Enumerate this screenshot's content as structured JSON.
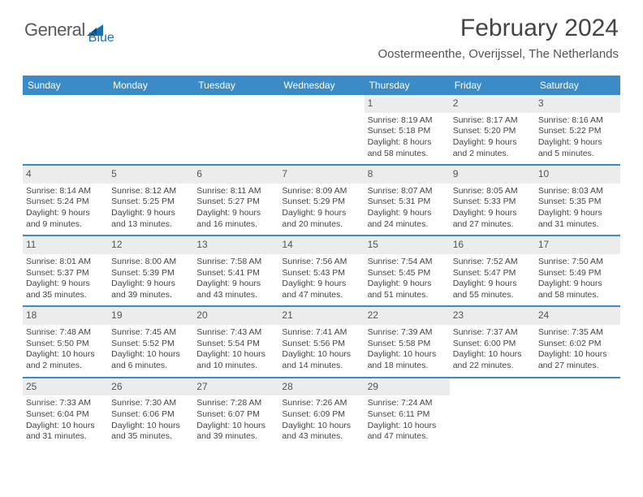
{
  "brand": {
    "name_part1": "General",
    "name_part2": "Blue"
  },
  "title": "February 2024",
  "location": "Oostermeenthe, Overijssel, The Netherlands",
  "colors": {
    "header_bg": "#3b8bc7",
    "daynum_bg": "#ececec",
    "rule": "#3b8bc7",
    "text": "#444444",
    "logo_gray": "#5a5a5a",
    "logo_blue": "#1b6fb3"
  },
  "weekdays": [
    "Sunday",
    "Monday",
    "Tuesday",
    "Wednesday",
    "Thursday",
    "Friday",
    "Saturday"
  ],
  "weeks": [
    [
      {
        "blank": true
      },
      {
        "blank": true
      },
      {
        "blank": true
      },
      {
        "blank": true
      },
      {
        "n": "1",
        "sr": "8:19 AM",
        "ss": "5:18 PM",
        "dl1": "Daylight: 8 hours",
        "dl2": "and 58 minutes."
      },
      {
        "n": "2",
        "sr": "8:17 AM",
        "ss": "5:20 PM",
        "dl1": "Daylight: 9 hours",
        "dl2": "and 2 minutes."
      },
      {
        "n": "3",
        "sr": "8:16 AM",
        "ss": "5:22 PM",
        "dl1": "Daylight: 9 hours",
        "dl2": "and 5 minutes."
      }
    ],
    [
      {
        "n": "4",
        "sr": "8:14 AM",
        "ss": "5:24 PM",
        "dl1": "Daylight: 9 hours",
        "dl2": "and 9 minutes."
      },
      {
        "n": "5",
        "sr": "8:12 AM",
        "ss": "5:25 PM",
        "dl1": "Daylight: 9 hours",
        "dl2": "and 13 minutes."
      },
      {
        "n": "6",
        "sr": "8:11 AM",
        "ss": "5:27 PM",
        "dl1": "Daylight: 9 hours",
        "dl2": "and 16 minutes."
      },
      {
        "n": "7",
        "sr": "8:09 AM",
        "ss": "5:29 PM",
        "dl1": "Daylight: 9 hours",
        "dl2": "and 20 minutes."
      },
      {
        "n": "8",
        "sr": "8:07 AM",
        "ss": "5:31 PM",
        "dl1": "Daylight: 9 hours",
        "dl2": "and 24 minutes."
      },
      {
        "n": "9",
        "sr": "8:05 AM",
        "ss": "5:33 PM",
        "dl1": "Daylight: 9 hours",
        "dl2": "and 27 minutes."
      },
      {
        "n": "10",
        "sr": "8:03 AM",
        "ss": "5:35 PM",
        "dl1": "Daylight: 9 hours",
        "dl2": "and 31 minutes."
      }
    ],
    [
      {
        "n": "11",
        "sr": "8:01 AM",
        "ss": "5:37 PM",
        "dl1": "Daylight: 9 hours",
        "dl2": "and 35 minutes."
      },
      {
        "n": "12",
        "sr": "8:00 AM",
        "ss": "5:39 PM",
        "dl1": "Daylight: 9 hours",
        "dl2": "and 39 minutes."
      },
      {
        "n": "13",
        "sr": "7:58 AM",
        "ss": "5:41 PM",
        "dl1": "Daylight: 9 hours",
        "dl2": "and 43 minutes."
      },
      {
        "n": "14",
        "sr": "7:56 AM",
        "ss": "5:43 PM",
        "dl1": "Daylight: 9 hours",
        "dl2": "and 47 minutes."
      },
      {
        "n": "15",
        "sr": "7:54 AM",
        "ss": "5:45 PM",
        "dl1": "Daylight: 9 hours",
        "dl2": "and 51 minutes."
      },
      {
        "n": "16",
        "sr": "7:52 AM",
        "ss": "5:47 PM",
        "dl1": "Daylight: 9 hours",
        "dl2": "and 55 minutes."
      },
      {
        "n": "17",
        "sr": "7:50 AM",
        "ss": "5:49 PM",
        "dl1": "Daylight: 9 hours",
        "dl2": "and 58 minutes."
      }
    ],
    [
      {
        "n": "18",
        "sr": "7:48 AM",
        "ss": "5:50 PM",
        "dl1": "Daylight: 10 hours",
        "dl2": "and 2 minutes."
      },
      {
        "n": "19",
        "sr": "7:45 AM",
        "ss": "5:52 PM",
        "dl1": "Daylight: 10 hours",
        "dl2": "and 6 minutes."
      },
      {
        "n": "20",
        "sr": "7:43 AM",
        "ss": "5:54 PM",
        "dl1": "Daylight: 10 hours",
        "dl2": "and 10 minutes."
      },
      {
        "n": "21",
        "sr": "7:41 AM",
        "ss": "5:56 PM",
        "dl1": "Daylight: 10 hours",
        "dl2": "and 14 minutes."
      },
      {
        "n": "22",
        "sr": "7:39 AM",
        "ss": "5:58 PM",
        "dl1": "Daylight: 10 hours",
        "dl2": "and 18 minutes."
      },
      {
        "n": "23",
        "sr": "7:37 AM",
        "ss": "6:00 PM",
        "dl1": "Daylight: 10 hours",
        "dl2": "and 22 minutes."
      },
      {
        "n": "24",
        "sr": "7:35 AM",
        "ss": "6:02 PM",
        "dl1": "Daylight: 10 hours",
        "dl2": "and 27 minutes."
      }
    ],
    [
      {
        "n": "25",
        "sr": "7:33 AM",
        "ss": "6:04 PM",
        "dl1": "Daylight: 10 hours",
        "dl2": "and 31 minutes."
      },
      {
        "n": "26",
        "sr": "7:30 AM",
        "ss": "6:06 PM",
        "dl1": "Daylight: 10 hours",
        "dl2": "and 35 minutes."
      },
      {
        "n": "27",
        "sr": "7:28 AM",
        "ss": "6:07 PM",
        "dl1": "Daylight: 10 hours",
        "dl2": "and 39 minutes."
      },
      {
        "n": "28",
        "sr": "7:26 AM",
        "ss": "6:09 PM",
        "dl1": "Daylight: 10 hours",
        "dl2": "and 43 minutes."
      },
      {
        "n": "29",
        "sr": "7:24 AM",
        "ss": "6:11 PM",
        "dl1": "Daylight: 10 hours",
        "dl2": "and 47 minutes."
      },
      {
        "blank": true
      },
      {
        "blank": true
      }
    ]
  ]
}
